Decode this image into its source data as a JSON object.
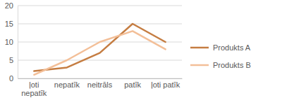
{
  "chart_data": {
    "type": "line",
    "categories": [
      "ļoti nepatīk",
      "nepatīk",
      "neitrāls",
      "patīk",
      "ļoti patīk"
    ],
    "series": [
      {
        "name": "Produkts A",
        "color": "#c57d42",
        "values": [
          2,
          3,
          7,
          15,
          10
        ]
      },
      {
        "name": "Produkts B",
        "color": "#f3bf98",
        "values": [
          1,
          5,
          10,
          13,
          8
        ]
      }
    ],
    "ylim": [
      0,
      20
    ],
    "yticks": [
      0,
      5,
      10,
      15,
      20
    ],
    "grid": true,
    "legend": "right"
  }
}
